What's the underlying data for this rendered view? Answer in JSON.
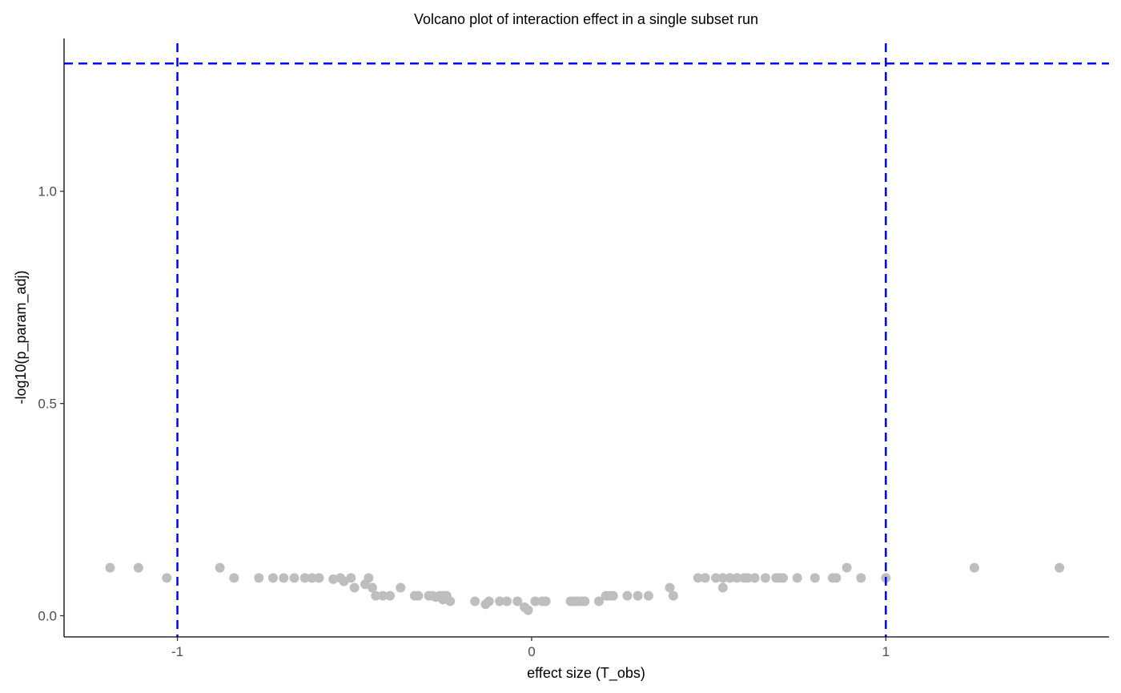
{
  "chart_data": {
    "type": "scatter",
    "title": "Volcano plot of interaction effect in a single subset run",
    "xlabel": "effect size (T_obs)",
    "ylabel": "-log10(p_param_adj)",
    "xlim": [
      -1.32,
      1.63
    ],
    "ylim": [
      -0.05,
      1.36
    ],
    "x_ticks": [
      -1,
      0,
      1
    ],
    "x_tick_labels": [
      "-1",
      "0",
      "1"
    ],
    "y_ticks": [
      0.0,
      0.5,
      1.0
    ],
    "y_tick_labels": [
      "0.0",
      "0.5",
      "1.0"
    ],
    "grid": false,
    "legend": "none",
    "colors": {
      "points": "#bebebe",
      "threshold_lines": "#0000ff",
      "axis": "#000000",
      "tick_text": "#4d4d4d"
    },
    "reference_lines": {
      "vertical": [
        -1,
        1
      ],
      "horizontal": [
        1.301
      ],
      "style": "dashed"
    },
    "points": [
      {
        "x": -1.19,
        "y": 0.113
      },
      {
        "x": -1.11,
        "y": 0.113
      },
      {
        "x": -1.03,
        "y": 0.089
      },
      {
        "x": -0.88,
        "y": 0.113
      },
      {
        "x": -0.84,
        "y": 0.089
      },
      {
        "x": -0.77,
        "y": 0.089
      },
      {
        "x": -0.73,
        "y": 0.089
      },
      {
        "x": -0.7,
        "y": 0.089
      },
      {
        "x": -0.67,
        "y": 0.089
      },
      {
        "x": -0.64,
        "y": 0.089
      },
      {
        "x": -0.62,
        "y": 0.089
      },
      {
        "x": -0.6,
        "y": 0.089
      },
      {
        "x": -0.56,
        "y": 0.086
      },
      {
        "x": -0.54,
        "y": 0.089
      },
      {
        "x": -0.53,
        "y": 0.081
      },
      {
        "x": -0.51,
        "y": 0.089
      },
      {
        "x": -0.5,
        "y": 0.066
      },
      {
        "x": -0.47,
        "y": 0.074
      },
      {
        "x": -0.46,
        "y": 0.089
      },
      {
        "x": -0.45,
        "y": 0.066
      },
      {
        "x": -0.44,
        "y": 0.047
      },
      {
        "x": -0.42,
        "y": 0.047
      },
      {
        "x": -0.4,
        "y": 0.047
      },
      {
        "x": -0.37,
        "y": 0.066
      },
      {
        "x": -0.33,
        "y": 0.047
      },
      {
        "x": -0.32,
        "y": 0.047
      },
      {
        "x": -0.29,
        "y": 0.047
      },
      {
        "x": -0.28,
        "y": 0.047
      },
      {
        "x": -0.27,
        "y": 0.044
      },
      {
        "x": -0.26,
        "y": 0.047
      },
      {
        "x": -0.25,
        "y": 0.047
      },
      {
        "x": -0.25,
        "y": 0.038
      },
      {
        "x": -0.24,
        "y": 0.047
      },
      {
        "x": -0.23,
        "y": 0.034
      },
      {
        "x": -0.16,
        "y": 0.034
      },
      {
        "x": -0.13,
        "y": 0.027
      },
      {
        "x": -0.12,
        "y": 0.034
      },
      {
        "x": -0.09,
        "y": 0.034
      },
      {
        "x": -0.07,
        "y": 0.034
      },
      {
        "x": -0.04,
        "y": 0.034
      },
      {
        "x": -0.02,
        "y": 0.02
      },
      {
        "x": -0.01,
        "y": 0.013
      },
      {
        "x": 0.01,
        "y": 0.034
      },
      {
        "x": 0.03,
        "y": 0.034
      },
      {
        "x": 0.04,
        "y": 0.034
      },
      {
        "x": 0.11,
        "y": 0.034
      },
      {
        "x": 0.12,
        "y": 0.034
      },
      {
        "x": 0.13,
        "y": 0.034
      },
      {
        "x": 0.14,
        "y": 0.034
      },
      {
        "x": 0.15,
        "y": 0.034
      },
      {
        "x": 0.19,
        "y": 0.034
      },
      {
        "x": 0.21,
        "y": 0.047
      },
      {
        "x": 0.22,
        "y": 0.047
      },
      {
        "x": 0.23,
        "y": 0.047
      },
      {
        "x": 0.27,
        "y": 0.047
      },
      {
        "x": 0.3,
        "y": 0.047
      },
      {
        "x": 0.33,
        "y": 0.047
      },
      {
        "x": 0.39,
        "y": 0.066
      },
      {
        "x": 0.4,
        "y": 0.047
      },
      {
        "x": 0.47,
        "y": 0.089
      },
      {
        "x": 0.49,
        "y": 0.089
      },
      {
        "x": 0.52,
        "y": 0.089
      },
      {
        "x": 0.54,
        "y": 0.089
      },
      {
        "x": 0.54,
        "y": 0.066
      },
      {
        "x": 0.56,
        "y": 0.089
      },
      {
        "x": 0.58,
        "y": 0.089
      },
      {
        "x": 0.6,
        "y": 0.089
      },
      {
        "x": 0.61,
        "y": 0.089
      },
      {
        "x": 0.63,
        "y": 0.089
      },
      {
        "x": 0.66,
        "y": 0.089
      },
      {
        "x": 0.69,
        "y": 0.089
      },
      {
        "x": 0.7,
        "y": 0.089
      },
      {
        "x": 0.71,
        "y": 0.089
      },
      {
        "x": 0.75,
        "y": 0.089
      },
      {
        "x": 0.8,
        "y": 0.089
      },
      {
        "x": 0.85,
        "y": 0.089
      },
      {
        "x": 0.86,
        "y": 0.089
      },
      {
        "x": 0.89,
        "y": 0.113
      },
      {
        "x": 0.93,
        "y": 0.089
      },
      {
        "x": 1.0,
        "y": 0.089
      },
      {
        "x": 1.25,
        "y": 0.113
      },
      {
        "x": 1.49,
        "y": 0.113
      }
    ]
  }
}
